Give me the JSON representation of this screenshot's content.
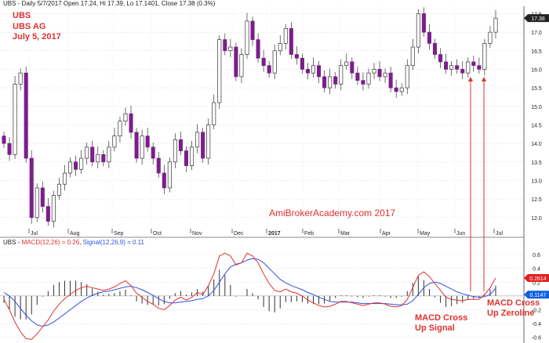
{
  "header": {
    "price_info": "UBS - Daily 5/7/2017 Open 17.24, Hi 17.39, Lo 17.1401, Close 17.38 (0.3%)",
    "macd_legend_prefix": "UBS - ",
    "macd_legend_macd": "MACD(12,26) = 0.26",
    "macd_legend_sep": ", ",
    "macd_legend_signal": "Signal(12,26,9) = 0.11"
  },
  "annotations": {
    "ticker": "UBS",
    "company": "UBS AG",
    "date": "July 5, 2017",
    "watermark": "AmiBrokerAcademy.com  2017",
    "cross_signal_1": "MACD Cross",
    "cross_signal_2": "Up Signal",
    "cross_zero_1": "MACD Cross",
    "cross_zero_2": "Up Zeroline"
  },
  "colors": {
    "up_candle": "#ffffff",
    "down_candle": "#7a1f8a",
    "macd_line": "#e03030",
    "signal_line": "#3050e0",
    "histogram": "#333333",
    "annotation": "#e03030",
    "grid": "#c8c8c8",
    "price_tag_bg": "#222222",
    "macd_tag_bg": "#e02020",
    "signal_tag_bg": "#1060e0"
  },
  "chart_data": [
    {
      "type": "candlestick",
      "x_labels": [
        "Jul",
        "Aug",
        "Sep",
        "Oct",
        "Nov",
        "Dec",
        "2017",
        "Feb",
        "Mar",
        "Apr",
        "May",
        "Jun",
        "Jul"
      ],
      "ylim": [
        11.7,
        17.7
      ],
      "yticks": [
        "12.0",
        "12.5",
        "13.0",
        "13.5",
        "14.0",
        "14.5",
        "15.0",
        "15.5",
        "16.0",
        "16.5",
        "17.0",
        "17.5"
      ],
      "last_price_label": "17.38",
      "closes": [
        14.0,
        13.7,
        15.6,
        15.9,
        13.6,
        12.0,
        12.8,
        12.3,
        11.9,
        12.6,
        12.9,
        13.2,
        13.5,
        13.3,
        13.6,
        13.9,
        13.5,
        13.7,
        13.5,
        13.9,
        14.2,
        14.6,
        14.8,
        14.3,
        13.6,
        14.2,
        13.9,
        13.6,
        13.2,
        12.8,
        13.5,
        14.1,
        13.8,
        13.4,
        13.9,
        14.3,
        13.6,
        14.5,
        15.1,
        16.8,
        16.5,
        16.6,
        15.8,
        16.4,
        17.3,
        16.8,
        16.3,
        16.1,
        15.9,
        16.5,
        16.7,
        17.1,
        16.4,
        16.3,
        16.0,
        15.9,
        16.1,
        15.8,
        15.5,
        15.8,
        15.6,
        16.1,
        16.2,
        15.9,
        15.7,
        15.6,
        15.9,
        16.0,
        15.8,
        15.9,
        15.5,
        15.4,
        15.5,
        16.1,
        16.6,
        17.5,
        17.0,
        16.7,
        16.4,
        16.2,
        16.0,
        16.1,
        16.0,
        15.9,
        16.2,
        16.1,
        16.0,
        16.7,
        17.0,
        17.38
      ],
      "series": [
        {
          "name": "UBS",
          "values": "closes"
        }
      ]
    },
    {
      "type": "line",
      "ylim": [
        -0.66,
        0.68
      ],
      "yticks": [
        "0.6",
        "0.4",
        "0.2",
        "0.0",
        "-0.2",
        "-0.4",
        "-0.6"
      ],
      "macd_label": "0.2614",
      "signal_label": "0.1147",
      "series": [
        {
          "name": "MACD(12,26)",
          "values": [
            -0.05,
            -0.2,
            -0.38,
            -0.52,
            -0.62,
            -0.63,
            -0.55,
            -0.45,
            -0.35,
            -0.22,
            -0.12,
            -0.04,
            0.02,
            0.08,
            0.12,
            0.14,
            0.12,
            0.1,
            0.08,
            0.1,
            0.13,
            0.18,
            0.22,
            0.15,
            0.04,
            -0.02,
            -0.08,
            -0.12,
            -0.18,
            -0.2,
            -0.14,
            -0.06,
            -0.02,
            -0.06,
            -0.02,
            0.05,
            0.02,
            0.15,
            0.32,
            0.58,
            0.62,
            0.58,
            0.45,
            0.48,
            0.62,
            0.58,
            0.48,
            0.32,
            0.18,
            0.08,
            0.06,
            0.1,
            0.06,
            0.04,
            0.0,
            -0.06,
            -0.1,
            -0.14,
            -0.16,
            -0.15,
            -0.12,
            -0.08,
            -0.08,
            -0.1,
            -0.12,
            -0.14,
            -0.12,
            -0.1,
            -0.1,
            -0.12,
            -0.15,
            -0.16,
            -0.14,
            -0.05,
            0.12,
            0.3,
            0.35,
            0.28,
            0.18,
            0.08,
            -0.02,
            -0.05,
            -0.06,
            -0.07,
            -0.05,
            -0.05,
            -0.05,
            0.02,
            0.12,
            0.26
          ]
        },
        {
          "name": "Signal(12,26,9)",
          "values": [
            0.05,
            0.0,
            -0.08,
            -0.18,
            -0.28,
            -0.36,
            -0.42,
            -0.44,
            -0.42,
            -0.38,
            -0.32,
            -0.26,
            -0.2,
            -0.14,
            -0.08,
            -0.03,
            0.01,
            0.04,
            0.06,
            0.07,
            0.09,
            0.11,
            0.13,
            0.14,
            0.12,
            0.09,
            0.05,
            0.01,
            -0.04,
            -0.08,
            -0.1,
            -0.1,
            -0.09,
            -0.08,
            -0.07,
            -0.05,
            -0.04,
            0.0,
            0.08,
            0.2,
            0.32,
            0.42,
            0.46,
            0.48,
            0.52,
            0.54,
            0.53,
            0.48,
            0.4,
            0.32,
            0.24,
            0.19,
            0.15,
            0.12,
            0.09,
            0.05,
            0.02,
            -0.02,
            -0.05,
            -0.08,
            -0.09,
            -0.09,
            -0.09,
            -0.09,
            -0.1,
            -0.11,
            -0.11,
            -0.11,
            -0.11,
            -0.11,
            -0.12,
            -0.13,
            -0.13,
            -0.12,
            -0.07,
            0.02,
            0.12,
            0.18,
            0.2,
            0.18,
            0.14,
            0.1,
            0.06,
            0.03,
            0.01,
            -0.01,
            -0.02,
            -0.01,
            0.02,
            0.11
          ]
        }
      ]
    }
  ]
}
